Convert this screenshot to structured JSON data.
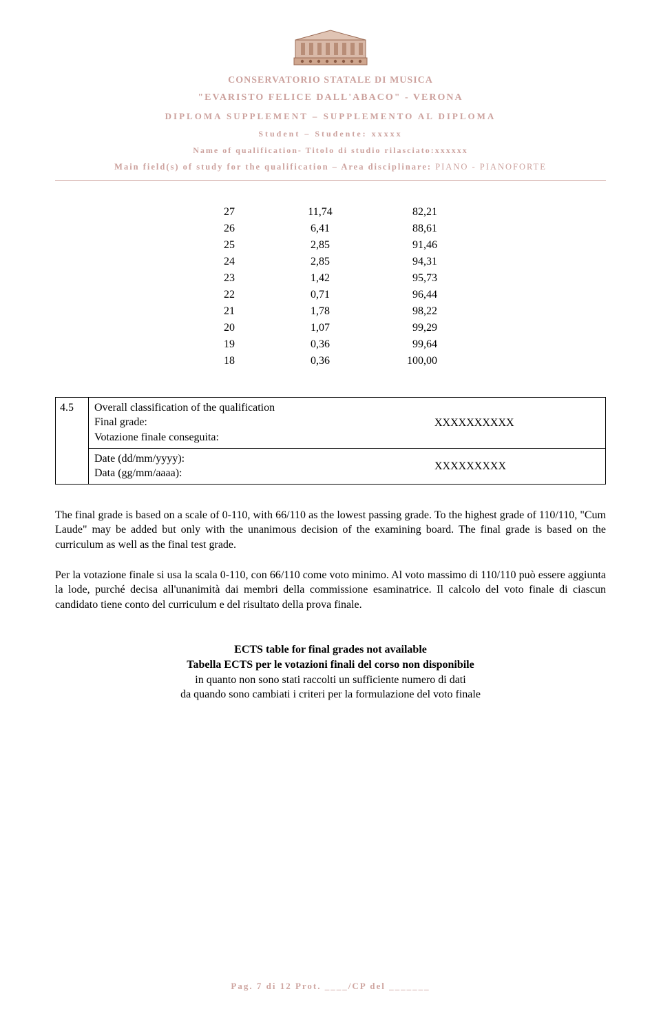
{
  "header": {
    "line1": "CONSERVATORIO STATALE  DI MUSICA",
    "line2": "\"EVARISTO FELICE DALL'ABACO\" - VERONA",
    "line3": "DIPLOMA SUPPLEMENT – SUPPLEMENTO AL DIPLOMA",
    "line4": "Student – Studente: xxxxx",
    "line5": "Name of qualification- Titolo di studio rilasciato:xxxxxx",
    "line6_a": "Main field(s) of study for the qualification – Area disciplinare: ",
    "line6_b": "PIANO - PIANOFORTE"
  },
  "table": {
    "rows": [
      {
        "c1": "27",
        "c2": "11,74",
        "c3": "82,21"
      },
      {
        "c1": "26",
        "c2": "6,41",
        "c3": "88,61"
      },
      {
        "c1": "25",
        "c2": "2,85",
        "c3": "91,46"
      },
      {
        "c1": "24",
        "c2": "2,85",
        "c3": "94,31"
      },
      {
        "c1": "23",
        "c2": "1,42",
        "c3": "95,73"
      },
      {
        "c1": "22",
        "c2": "0,71",
        "c3": "96,44"
      },
      {
        "c1": "21",
        "c2": "1,78",
        "c3": "98,22"
      },
      {
        "c1": "20",
        "c2": "1,07",
        "c3": "99,29"
      },
      {
        "c1": "19",
        "c2": "0,36",
        "c3": "99,64"
      },
      {
        "c1": "18",
        "c2": "0,36",
        "c3": "100,00"
      }
    ]
  },
  "box": {
    "num": "4.5",
    "row1_label_en": "Overall classification of the qualification",
    "row1_label_line2": "Final grade:",
    "row1_label_line3": "Votazione finale conseguita:",
    "row1_value": "XXXXXXXXXX",
    "row2_label_line1": "Date (dd/mm/yyyy):",
    "row2_label_line2": "Data (gg/mm/aaaa):",
    "row2_value": "XXXXXXXXX"
  },
  "para_en": "The final grade is based on a scale of 0-110, with 66/110 as the lowest passing grade. To the highest grade of 110/110, \"Cum Laude\" may be added but only with the unanimous decision of the examining board. The final grade is based on the curriculum as well as the final test grade.",
  "para_it": "Per la votazione finale si usa la scala 0-110, con 66/110 come voto minimo. Al voto massimo di 110/110 può essere aggiunta la lode, purché decisa all'unanimità dai membri della commissione esaminatrice. Il calcolo del voto finale di ciascun candidato tiene conto del curriculum e del risultato della prova finale.",
  "ects": {
    "l1": "ECTS table for final grades not available",
    "l2": "Tabella ECTS per le votazioni finali del corso non disponibile",
    "l3": "in quanto non sono stati raccolti un sufficiente numero di dati",
    "l4": "da quando sono cambiati i criteri per la formulazione del voto finale"
  },
  "footer": "Pag. 7 di 12 Prot. ____/CP del _______"
}
